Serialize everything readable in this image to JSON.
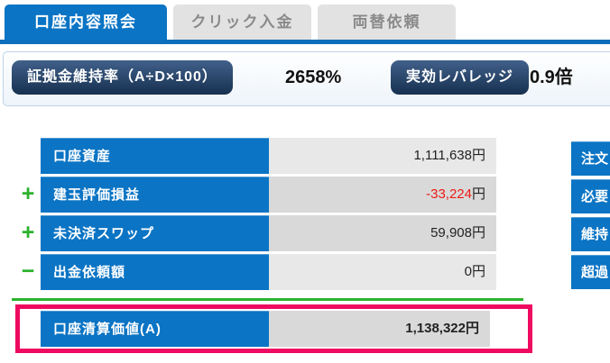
{
  "tabs": [
    {
      "label": "口座内容照会"
    },
    {
      "label": "クリック入金"
    },
    {
      "label": "両替依頼"
    }
  ],
  "summary_bar": {
    "margin_ratio": {
      "label": "証拠金維持率（A÷D×100）",
      "value": "2658%"
    },
    "leverage": {
      "label": "実効レバレッジ",
      "value": "0.9倍"
    }
  },
  "account_table": {
    "rows": [
      {
        "operator": "",
        "label": "口座資産",
        "value": "1,111,638",
        "unit": "円"
      },
      {
        "operator": "+",
        "label": "建玉評価損益",
        "value": "-33,224",
        "unit": "円"
      },
      {
        "operator": "+",
        "label": "未決済スワップ",
        "value": "59,908",
        "unit": "円"
      },
      {
        "operator": "−",
        "label": "出金依頼額",
        "value": "0",
        "unit": "円"
      }
    ],
    "total": {
      "label": "口座清算価値(A)",
      "value": "1,138,322",
      "unit": "円"
    }
  },
  "side_table": {
    "rows": [
      {
        "label": "注文"
      },
      {
        "label": "必要"
      },
      {
        "label": "維持"
      },
      {
        "label": "超過"
      }
    ]
  },
  "colors": {
    "accent_blue": "#0b74c4",
    "negative_red": "#ed1c16",
    "positive_green": "#2eb22e",
    "highlight_pink": "#ee0a60",
    "badge_navy": "#16304f"
  }
}
